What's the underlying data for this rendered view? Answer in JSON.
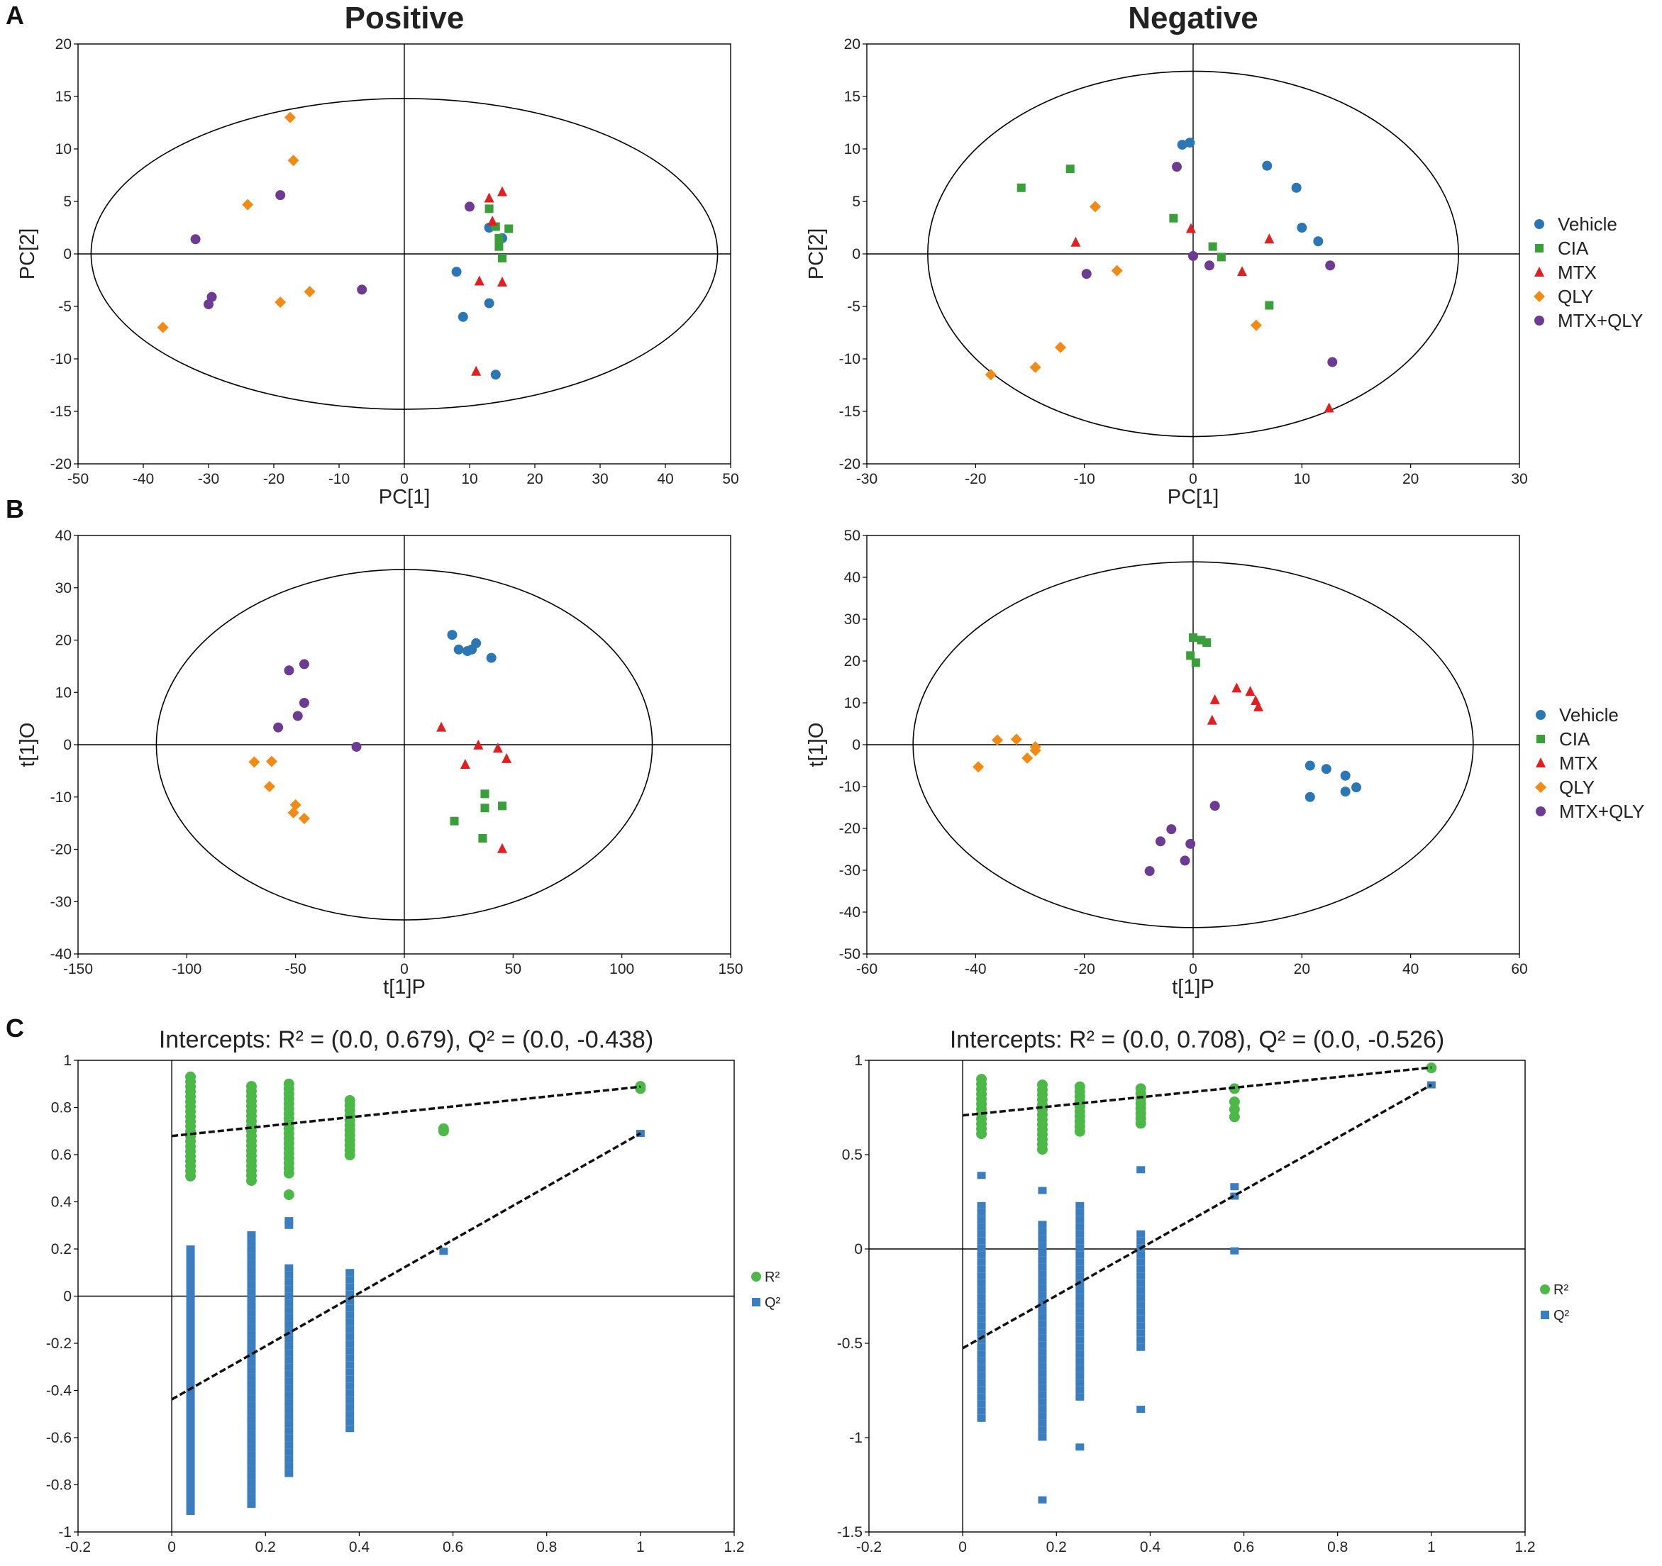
{
  "panel_labels": [
    "A",
    "B",
    "C"
  ],
  "legend_groups": [
    "Vehicle",
    "CIA",
    "MTX",
    "QLY",
    "MTX+QLY"
  ],
  "legend_perm": [
    "R²",
    "Q²"
  ],
  "colors": {
    "Vehicle": "#2b76b4",
    "CIA": "#3a9f3a",
    "MTX": "#e02020",
    "QLY": "#f28a16",
    "MTX+QLY": "#6e3b93",
    "R2": "#4cb848",
    "Q2": "#3a7ebf"
  },
  "chart_data": [
    {
      "type": "scatter",
      "id": "A-pos",
      "title": "Positive",
      "xlabel": "PC[1]",
      "ylabel": "PC[2]",
      "xlim": [
        -50,
        50
      ],
      "ylim": [
        -20,
        20
      ],
      "xticks": [
        "-50",
        "-40",
        "-30",
        "-20",
        "-10",
        "0",
        "10",
        "20",
        "30",
        "40",
        "50"
      ],
      "yticks": [
        "-20",
        "-15",
        "-10",
        "-5",
        "0",
        "5",
        "10",
        "15",
        "20"
      ],
      "ellipse": {
        "rx": 48,
        "ry": 14.8
      },
      "series": [
        {
          "name": "Vehicle",
          "points": [
            [
              13,
              2.5
            ],
            [
              15,
              1.5
            ],
            [
              8,
              -1.7
            ],
            [
              13,
              -4.7
            ],
            [
              9,
              -6
            ],
            [
              14,
              -11.5
            ]
          ]
        },
        {
          "name": "CIA",
          "points": [
            [
              13,
              4.3
            ],
            [
              14,
              2.6
            ],
            [
              16,
              2.4
            ],
            [
              14.5,
              1.5
            ],
            [
              14.5,
              0.7
            ],
            [
              15,
              -0.4
            ]
          ]
        },
        {
          "name": "MTX",
          "points": [
            [
              13,
              5.3
            ],
            [
              15,
              5.9
            ],
            [
              13.5,
              3.1
            ],
            [
              11.5,
              -2.6
            ],
            [
              15,
              -2.7
            ],
            [
              11,
              -11.2
            ]
          ]
        },
        {
          "name": "QLY",
          "points": [
            [
              -17.5,
              13
            ],
            [
              -17,
              8.9
            ],
            [
              -24,
              4.7
            ],
            [
              -14.5,
              -3.6
            ],
            [
              -19,
              -4.6
            ],
            [
              -37,
              -7
            ]
          ]
        },
        {
          "name": "MTX+QLY",
          "points": [
            [
              10,
              4.5
            ],
            [
              -19,
              5.6
            ],
            [
              -32,
              1.4
            ],
            [
              -6.5,
              -3.4
            ],
            [
              -29.5,
              -4.1
            ],
            [
              -30,
              -4.8
            ]
          ]
        }
      ]
    },
    {
      "type": "scatter",
      "id": "A-neg",
      "title": "Negative",
      "xlabel": "PC[1]",
      "ylabel": "PC[2]",
      "xlim": [
        -30,
        30
      ],
      "ylim": [
        -20,
        20
      ],
      "xticks": [
        "-30",
        "-20",
        "-10",
        "0",
        "10",
        "20",
        "30"
      ],
      "yticks": [
        "-20",
        "-15",
        "-10",
        "-5",
        "0",
        "5",
        "10",
        "15",
        "20"
      ],
      "ellipse": {
        "rx": 24.4,
        "ry": 17.4
      },
      "series": [
        {
          "name": "Vehicle",
          "points": [
            [
              -1,
              10.4
            ],
            [
              -0.3,
              10.6
            ],
            [
              6.8,
              8.4
            ],
            [
              9.5,
              6.3
            ],
            [
              10,
              2.5
            ],
            [
              11.5,
              1.2
            ]
          ]
        },
        {
          "name": "CIA",
          "points": [
            [
              -15.8,
              6.3
            ],
            [
              -11.3,
              8.1
            ],
            [
              -1.8,
              3.4
            ],
            [
              1.8,
              0.7
            ],
            [
              2.6,
              -0.3
            ],
            [
              7,
              -4.9
            ]
          ]
        },
        {
          "name": "MTX",
          "points": [
            [
              -10.8,
              1.1
            ],
            [
              -0.2,
              2.4
            ],
            [
              4.5,
              -1.7
            ],
            [
              7,
              1.4
            ],
            [
              12.5,
              -14.7
            ]
          ]
        },
        {
          "name": "QLY",
          "points": [
            [
              -9,
              4.5
            ],
            [
              -7,
              -1.6
            ],
            [
              5.8,
              -6.8
            ],
            [
              -12.2,
              -8.9
            ],
            [
              -14.5,
              -10.8
            ],
            [
              -18.6,
              -11.5
            ]
          ]
        },
        {
          "name": "MTX+QLY",
          "points": [
            [
              -1.5,
              8.3
            ],
            [
              0,
              -0.2
            ],
            [
              1.5,
              -1.1
            ],
            [
              -9.8,
              -1.9
            ],
            [
              12.6,
              -1.1
            ],
            [
              12.8,
              -10.3
            ]
          ]
        }
      ]
    },
    {
      "type": "scatter",
      "id": "B-pos",
      "title": "",
      "xlabel": "t[1]P",
      "ylabel": "t[1]O",
      "xlim": [
        -150,
        150
      ],
      "ylim": [
        -40,
        40
      ],
      "xticks": [
        "-150",
        "-100",
        "-50",
        "0",
        "50",
        "100",
        "150"
      ],
      "yticks": [
        "-40",
        "-30",
        "-20",
        "-10",
        "0",
        "10",
        "20",
        "30",
        "40"
      ],
      "ellipse": {
        "rx": 114,
        "ry": 33.5
      },
      "series": [
        {
          "name": "Vehicle",
          "points": [
            [
              22,
              21
            ],
            [
              25,
              18.2
            ],
            [
              29,
              17.9
            ],
            [
              33,
              19.4
            ],
            [
              31,
              18.2
            ],
            [
              40,
              16.6
            ]
          ]
        },
        {
          "name": "CIA",
          "points": [
            [
              37,
              -9.4
            ],
            [
              37,
              -12.1
            ],
            [
              45,
              -11.7
            ],
            [
              23,
              -14.6
            ],
            [
              36,
              -17.9
            ]
          ]
        },
        {
          "name": "MTX",
          "points": [
            [
              17,
              3.3
            ],
            [
              34,
              -0.1
            ],
            [
              43,
              -0.7
            ],
            [
              47,
              -2.7
            ],
            [
              28,
              -3.8
            ],
            [
              45,
              -19.9
            ]
          ]
        },
        {
          "name": "QLY",
          "points": [
            [
              -69,
              -3.3
            ],
            [
              -61,
              -3.2
            ],
            [
              -62,
              -8
            ],
            [
              -50,
              -11.5
            ],
            [
              -51,
              -13
            ],
            [
              -46,
              -14.1
            ]
          ]
        },
        {
          "name": "MTX+QLY",
          "points": [
            [
              -46,
              15.4
            ],
            [
              -53,
              14.2
            ],
            [
              -46,
              8
            ],
            [
              -49,
              5.5
            ],
            [
              -58,
              3.3
            ],
            [
              -22,
              -0.4
            ]
          ]
        }
      ]
    },
    {
      "type": "scatter",
      "id": "B-neg",
      "title": "",
      "xlabel": "t[1]P",
      "ylabel": "t[1]O",
      "xlim": [
        -60,
        60
      ],
      "ylim": [
        -50,
        50
      ],
      "xticks": [
        "-60",
        "-40",
        "-20",
        "0",
        "20",
        "40",
        "60"
      ],
      "yticks": [
        "-50",
        "-40",
        "-30",
        "-20",
        "-10",
        "0",
        "10",
        "20",
        "30",
        "40",
        "50"
      ],
      "ellipse": {
        "rx": 51.5,
        "ry": 43.7
      },
      "series": [
        {
          "name": "Vehicle",
          "points": [
            [
              21.5,
              -5
            ],
            [
              24.5,
              -5.8
            ],
            [
              28,
              -7.4
            ],
            [
              30,
              -10.2
            ],
            [
              28,
              -11.2
            ],
            [
              21.5,
              -12.5
            ]
          ]
        },
        {
          "name": "CIA",
          "points": [
            [
              0,
              25.6
            ],
            [
              1.5,
              25
            ],
            [
              2.5,
              24.4
            ],
            [
              -0.5,
              21.3
            ],
            [
              0.5,
              19.6
            ]
          ]
        },
        {
          "name": "MTX",
          "points": [
            [
              8,
              13.5
            ],
            [
              10.5,
              12.7
            ],
            [
              11.5,
              10.5
            ],
            [
              12,
              9
            ],
            [
              4,
              10.7
            ],
            [
              3.5,
              5.8
            ]
          ]
        },
        {
          "name": "QLY",
          "points": [
            [
              -36,
              1.1
            ],
            [
              -32.5,
              1.3
            ],
            [
              -29,
              -0.5
            ],
            [
              -29,
              -1.4
            ],
            [
              -30.5,
              -3.2
            ],
            [
              -39.5,
              -5.3
            ]
          ]
        },
        {
          "name": "MTX+QLY",
          "points": [
            [
              4,
              -14.6
            ],
            [
              -4,
              -20.2
            ],
            [
              -6,
              -23.1
            ],
            [
              -0.5,
              -23.7
            ],
            [
              -1.5,
              -27.7
            ],
            [
              -8,
              -30.2
            ]
          ]
        }
      ]
    },
    {
      "type": "scatter",
      "id": "C-pos",
      "title": "Intercepts: R² = (0.0, 0.679), Q² = (0.0, -0.438)",
      "xlabel": "",
      "ylabel": "",
      "xlim": [
        -0.2,
        1.2
      ],
      "ylim": [
        -1,
        1
      ],
      "xticks": [
        "-0.2",
        "0",
        "0.2",
        "0.4",
        "0.6",
        "0.8",
        "1",
        "1.2"
      ],
      "yticks": [
        "-1",
        "-0.8",
        "-0.6",
        "-0.4",
        "-0.2",
        "0",
        "0.2",
        "0.4",
        "0.6",
        "0.8",
        "1"
      ],
      "r2_columns": [
        {
          "x": 0.04,
          "min": 0.49,
          "max": 0.93
        },
        {
          "x": 0.17,
          "min": 0.49,
          "max": 0.89
        },
        {
          "x": 0.25,
          "min": 0.52,
          "max": 0.9
        },
        {
          "x": 0.38,
          "min": 0.58,
          "max": 0.83
        }
      ],
      "r2_extra": [
        [
          0.25,
          0.43
        ],
        [
          0.58,
          0.71
        ],
        [
          0.58,
          0.7
        ],
        [
          1,
          0.88
        ],
        [
          1,
          0.89
        ]
      ],
      "q2_columns": [
        {
          "x": 0.04,
          "min": -0.93,
          "max": 0.2
        },
        {
          "x": 0.17,
          "min": -0.89,
          "max": 0.26
        },
        {
          "x": 0.25,
          "min": -0.78,
          "max": 0.12
        },
        {
          "x": 0.38,
          "min": -0.57,
          "max": 0.1
        }
      ],
      "q2_extra": [
        [
          0.25,
          0.32
        ],
        [
          0.25,
          0.3
        ],
        [
          0.58,
          0.19
        ],
        [
          1,
          0.69
        ]
      ],
      "r2_line": {
        "intercept": 0.679,
        "end": [
          1,
          0.888
        ]
      },
      "q2_line": {
        "intercept": -0.438,
        "end": [
          1,
          0.69
        ]
      }
    },
    {
      "type": "scatter",
      "id": "C-neg",
      "title": "Intercepts: R² = (0.0, 0.708), Q² = (0.0, -0.526)",
      "xlabel": "",
      "ylabel": "",
      "xlim": [
        -0.2,
        1.2
      ],
      "ylim": [
        -1.5,
        1
      ],
      "xticks": [
        "-0.2",
        "0",
        "0.2",
        "0.4",
        "0.6",
        "0.8",
        "1",
        "1.2"
      ],
      "yticks": [
        "-1.5",
        "-1",
        "-0.5",
        "0",
        "0.5",
        "1"
      ],
      "r2_columns": [
        {
          "x": 0.04,
          "min": 0.6,
          "max": 0.9
        },
        {
          "x": 0.17,
          "min": 0.52,
          "max": 0.87
        },
        {
          "x": 0.25,
          "min": 0.61,
          "max": 0.86
        },
        {
          "x": 0.38,
          "min": 0.64,
          "max": 0.85
        }
      ],
      "r2_extra": [
        [
          0.58,
          0.7
        ],
        [
          0.58,
          0.74
        ],
        [
          0.58,
          0.78
        ],
        [
          0.58,
          0.85
        ],
        [
          1,
          0.96
        ]
      ],
      "q2_columns": [
        {
          "x": 0.04,
          "min": -0.9,
          "max": 0.23
        },
        {
          "x": 0.17,
          "min": -1.03,
          "max": 0.13
        },
        {
          "x": 0.25,
          "min": -0.8,
          "max": 0.23
        },
        {
          "x": 0.38,
          "min": -0.53,
          "max": 0.08
        }
      ],
      "q2_extra": [
        [
          0.04,
          0.39
        ],
        [
          0.17,
          0.31
        ],
        [
          0.17,
          -1.33
        ],
        [
          0.25,
          -1.05
        ],
        [
          0.38,
          0.42
        ],
        [
          0.38,
          -0.85
        ],
        [
          0.58,
          0.33
        ],
        [
          0.58,
          0.28
        ],
        [
          0.58,
          -0.01
        ],
        [
          1,
          0.87
        ]
      ],
      "r2_line": {
        "intercept": 0.708,
        "end": [
          1,
          0.962
        ]
      },
      "q2_line": {
        "intercept": -0.526,
        "end": [
          1,
          0.87
        ]
      }
    }
  ]
}
